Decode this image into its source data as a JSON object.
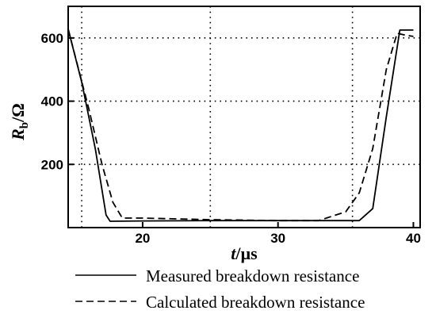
{
  "chart_data": {
    "type": "line",
    "xlabel": {
      "var": "t",
      "unit": "/µs"
    },
    "ylabel": {
      "var": "R",
      "sub": "b",
      "unit": "/Ω"
    },
    "xlim": [
      14.5,
      40.5
    ],
    "ylim": [
      0,
      700
    ],
    "xticks": [
      20,
      30,
      40
    ],
    "yticks": [
      200,
      400,
      600
    ],
    "grid": {
      "x": [
        15.5,
        25,
        35.5
      ],
      "y": [
        200,
        400,
        600
      ],
      "style": "dotted"
    },
    "legend_position": "below",
    "series": [
      {
        "name": "Measured breakdown resistance",
        "style": "solid",
        "x": [
          14.5,
          15.5,
          16.5,
          17.3,
          17.6,
          20,
          25,
          30,
          33,
          36,
          37,
          38,
          39,
          40
        ],
        "y": [
          628,
          460,
          250,
          40,
          20,
          21,
          22,
          22,
          22,
          22,
          60,
          350,
          625,
          625
        ]
      },
      {
        "name": "Calculated breakdown resistance",
        "style": "dashed",
        "x": [
          14.5,
          16,
          17,
          17.8,
          18.5,
          20,
          25,
          30,
          33,
          35,
          36,
          37,
          38,
          38.8,
          39.5,
          40
        ],
        "y": [
          628,
          380,
          200,
          80,
          30,
          30,
          25,
          22,
          22,
          50,
          110,
          250,
          500,
          615,
          608,
          605
        ]
      }
    ]
  }
}
